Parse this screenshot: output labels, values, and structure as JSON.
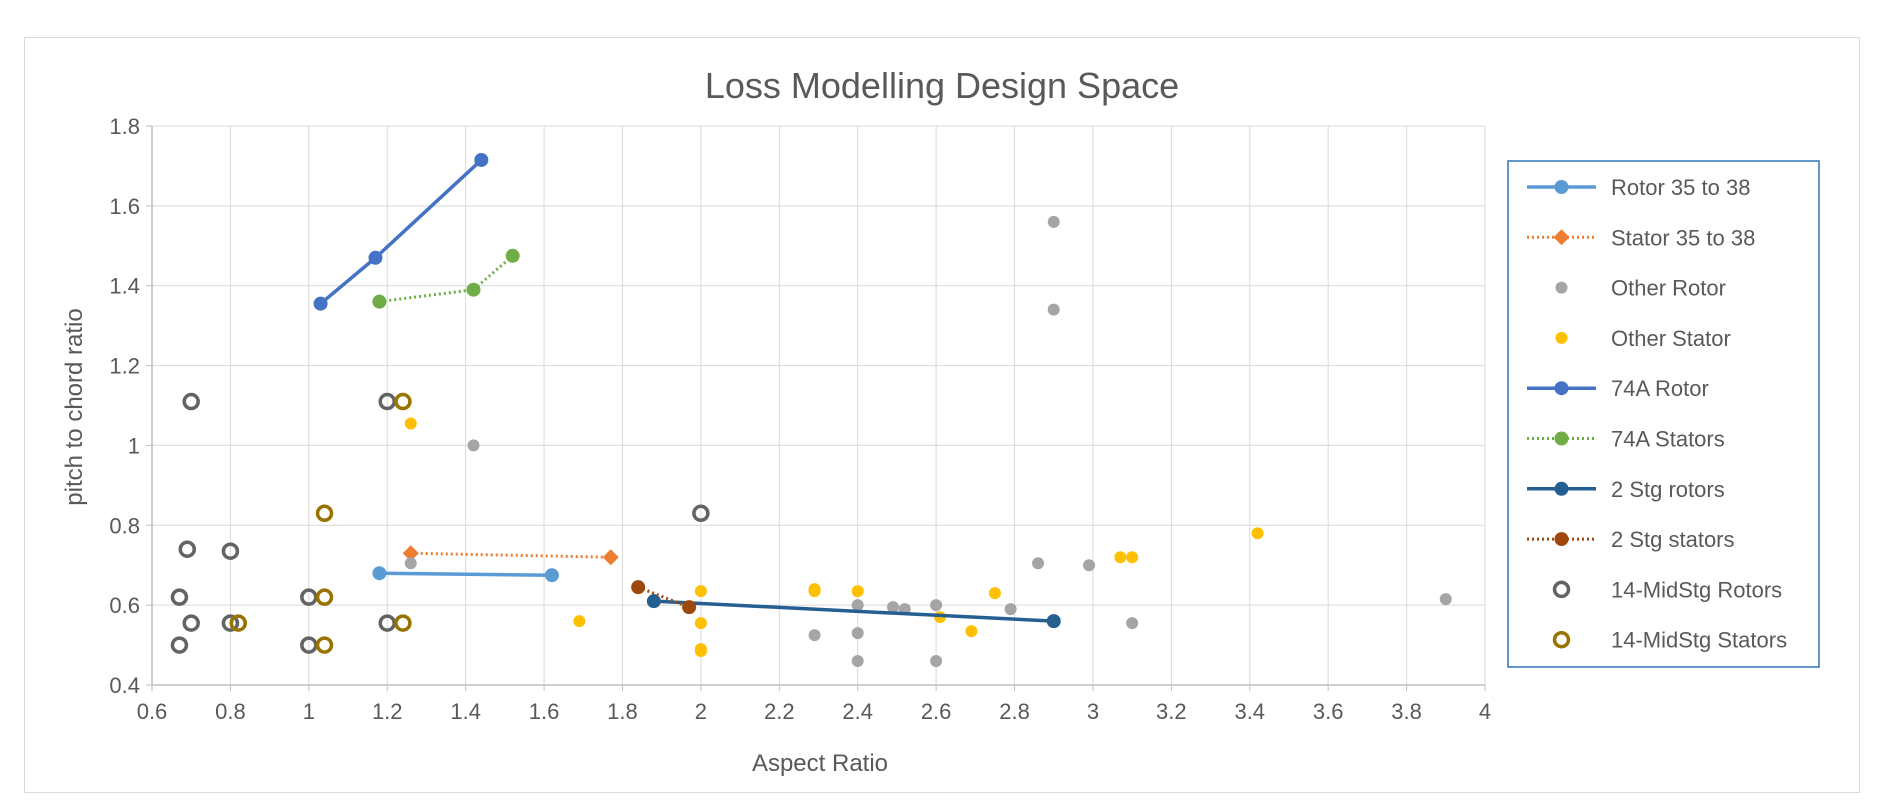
{
  "chart_data": {
    "type": "scatter",
    "title": "Loss Modelling Design Space",
    "xlabel": "Aspect Ratio",
    "ylabel": "pitch to chord ratio",
    "xlim": [
      0.6,
      4
    ],
    "ylim": [
      0.4,
      1.8
    ],
    "x_ticks": [
      "0.6",
      "0.8",
      "1",
      "1.2",
      "1.4",
      "1.6",
      "1.8",
      "2",
      "2.2",
      "2.4",
      "2.6",
      "2.8",
      "3",
      "3.2",
      "3.4",
      "3.6",
      "3.8",
      "4"
    ],
    "y_ticks": [
      "0.4",
      "0.6",
      "0.8",
      "1",
      "1.2",
      "1.4",
      "1.6",
      "1.8"
    ],
    "grid": true,
    "legend_position": "right",
    "series": [
      {
        "name": "Rotor 35 to 38",
        "color": "#5b9bd5",
        "marker": "circle",
        "line": "solid",
        "points": [
          [
            1.18,
            0.68
          ],
          [
            1.62,
            0.675
          ]
        ]
      },
      {
        "name": "Stator 35 to 38",
        "color": "#ed7d31",
        "marker": "diamond",
        "line": "dotted",
        "points": [
          [
            1.26,
            0.73
          ],
          [
            1.77,
            0.72
          ]
        ]
      },
      {
        "name": "Other Rotor",
        "color": "#a5a5a5",
        "marker": "small-circle",
        "line": "none",
        "points": [
          [
            1.26,
            0.705
          ],
          [
            1.42,
            1.0
          ],
          [
            2.4,
            0.6
          ],
          [
            2.4,
            0.53
          ],
          [
            2.4,
            0.46
          ],
          [
            2.29,
            0.525
          ],
          [
            2.49,
            0.595
          ],
          [
            2.52,
            0.59
          ],
          [
            2.6,
            0.6
          ],
          [
            2.6,
            0.46
          ],
          [
            2.79,
            0.59
          ],
          [
            2.86,
            0.705
          ],
          [
            2.9,
            1.56
          ],
          [
            2.9,
            1.34
          ],
          [
            2.99,
            0.7
          ],
          [
            3.1,
            0.555
          ],
          [
            3.9,
            0.615
          ]
        ]
      },
      {
        "name": "Other Stator",
        "color": "#ffc000",
        "marker": "small-circle",
        "line": "none",
        "points": [
          [
            1.26,
            1.055
          ],
          [
            1.69,
            0.56
          ],
          [
            2.0,
            0.635
          ],
          [
            2.0,
            0.555
          ],
          [
            2.0,
            0.49
          ],
          [
            2.0,
            0.485
          ],
          [
            2.29,
            0.64
          ],
          [
            2.29,
            0.635
          ],
          [
            2.4,
            0.635
          ],
          [
            2.61,
            0.57
          ],
          [
            2.69,
            0.535
          ],
          [
            2.75,
            0.63
          ],
          [
            3.07,
            0.72
          ],
          [
            3.1,
            0.72
          ],
          [
            3.42,
            0.78
          ]
        ]
      },
      {
        "name": "74A Rotor",
        "color": "#4472c4",
        "marker": "circle",
        "line": "solid",
        "points": [
          [
            1.03,
            1.355
          ],
          [
            1.17,
            1.47
          ],
          [
            1.44,
            1.715
          ]
        ]
      },
      {
        "name": "74A Stators",
        "color": "#70ad47",
        "marker": "circle",
        "line": "dotted",
        "points": [
          [
            1.18,
            1.36
          ],
          [
            1.42,
            1.39
          ],
          [
            1.52,
            1.475
          ]
        ]
      },
      {
        "name": "2 Stg rotors",
        "color": "#255e91",
        "marker": "circle",
        "line": "solid",
        "points": [
          [
            1.88,
            0.61
          ],
          [
            2.9,
            0.56
          ]
        ]
      },
      {
        "name": "2 Stg stators",
        "color": "#9e480e",
        "marker": "circle",
        "line": "dotted",
        "points": [
          [
            1.84,
            0.645
          ],
          [
            1.97,
            0.595
          ]
        ]
      },
      {
        "name": "14-MidStg Rotors",
        "color": "#636363",
        "marker": "ring",
        "line": "none",
        "points": [
          [
            0.67,
            0.62
          ],
          [
            0.67,
            0.5
          ],
          [
            0.69,
            0.74
          ],
          [
            0.7,
            0.555
          ],
          [
            0.7,
            1.11
          ],
          [
            0.8,
            0.735
          ],
          [
            0.8,
            0.555
          ],
          [
            1.0,
            0.62
          ],
          [
            1.0,
            0.5
          ],
          [
            1.2,
            1.11
          ],
          [
            1.2,
            0.555
          ],
          [
            2.0,
            0.83
          ]
        ]
      },
      {
        "name": "14-MidStg Stators",
        "color": "#997300",
        "marker": "ring",
        "line": "none",
        "points": [
          [
            0.82,
            0.555
          ],
          [
            1.04,
            0.83
          ],
          [
            1.04,
            0.62
          ],
          [
            1.04,
            0.5
          ],
          [
            1.24,
            1.11
          ],
          [
            1.24,
            0.555
          ]
        ]
      }
    ]
  }
}
